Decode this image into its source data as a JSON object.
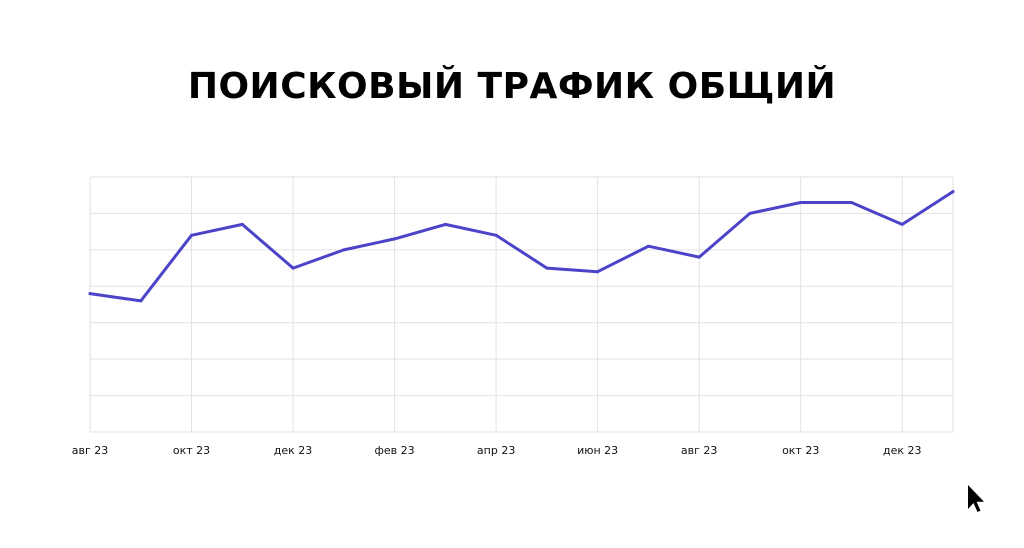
{
  "title": "ПОИСКОВЫЙ ТРАФИК ОБЩИЙ",
  "colors": {
    "line": "#4B44C8",
    "grid": "#E2E2E2",
    "text": "#000000"
  },
  "logo_icon": "cursor-logo-icon",
  "chart_data": {
    "type": "line",
    "title": "ПОИСКОВЫЙ ТРАФИК ОБЩИЙ",
    "xlabel": "",
    "ylabel": "",
    "grid": true,
    "x_ticks": [
      "авг 23",
      "окт 23",
      "дек 23",
      "фев 23",
      "апр 23",
      "июн 23",
      "авг 23",
      "окт 23",
      "дек 23"
    ],
    "ylim": [
      0,
      7
    ],
    "values": [
      3.8,
      3.6,
      5.4,
      5.7,
      4.5,
      5.0,
      5.3,
      5.7,
      5.4,
      4.5,
      4.4,
      5.1,
      4.8,
      6.0,
      6.3,
      6.3,
      5.7,
      6.6
    ]
  }
}
